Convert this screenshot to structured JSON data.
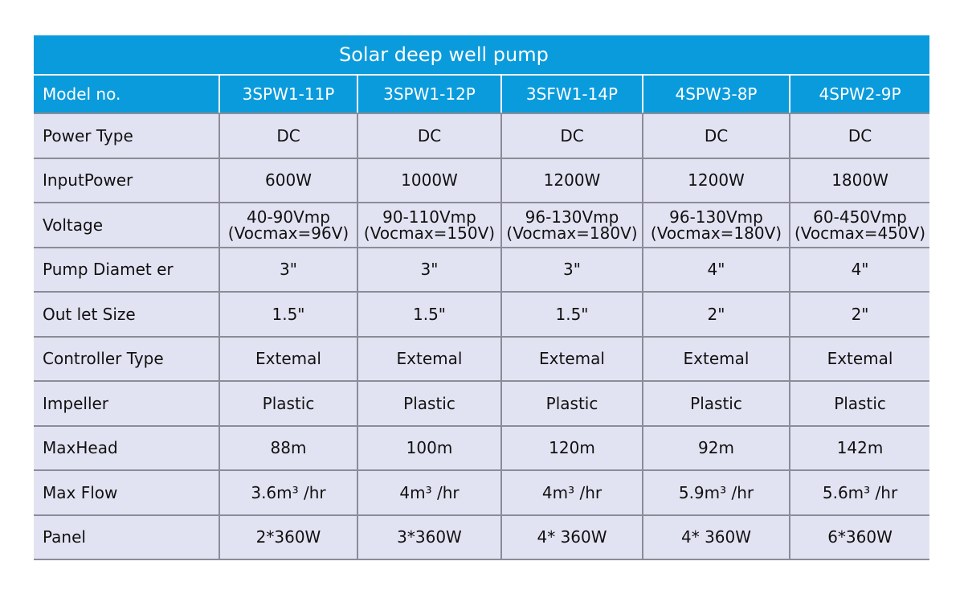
{
  "title": "Solar deep well pump",
  "header": {
    "label": "Model no.",
    "models": [
      "3SPW1-11P",
      "3SPW1-12P",
      "3SFW1-14P",
      "4SPW3-8P",
      "4SPW2-9P"
    ]
  },
  "rows": [
    {
      "label": "Power Type",
      "values": [
        "DC",
        "DC",
        "DC",
        "DC",
        "DC"
      ]
    },
    {
      "label": "InputPower",
      "values": [
        "600W",
        "1000W",
        "1200W",
        "1200W",
        "1800W"
      ]
    },
    {
      "label": "Voltage",
      "values": [
        {
          "line1": "40-90Vmp",
          "line2": "(Vocmax=96V)"
        },
        {
          "line1": "90-110Vmp",
          "line2": "(Vocmax=150V)"
        },
        {
          "line1": "96-130Vmp",
          "line2": "(Vocmax=180V)"
        },
        {
          "line1": "96-130Vmp",
          "line2": "(Vocmax=180V)"
        },
        {
          "line1": "60-450Vmp",
          "line2": "(Vocmax=450V)"
        }
      ]
    },
    {
      "label": "Pump Diamet er",
      "values": [
        "3\"",
        "3\"",
        "3\"",
        "4\"",
        "4\""
      ]
    },
    {
      "label": "Out let Size",
      "values": [
        "1.5\"",
        "1.5\"",
        "1.5\"",
        "2\"",
        "2\""
      ]
    },
    {
      "label": "Controller Type",
      "values": [
        "Extemal",
        "Extemal",
        "Extemal",
        "Extemal",
        "Extemal"
      ]
    },
    {
      "label": "Impeller",
      "values": [
        "Plastic",
        "Plastic",
        "Plastic",
        "Plastic",
        "Plastic"
      ]
    },
    {
      "label": "MaxHead",
      "values": [
        "88m",
        "100m",
        "120m",
        "92m",
        "142m"
      ]
    },
    {
      "label": "Max Flow",
      "values": [
        "3.6m³ /hr",
        "4m³ /hr",
        "4m³ /hr",
        "5.9m³ /hr",
        "5.6m³ /hr"
      ]
    },
    {
      "label": "Panel",
      "values": [
        "2*360W",
        "3*360W",
        "4* 360W",
        "4* 360W",
        "6*360W"
      ]
    }
  ],
  "colors": {
    "header_bg": "#0a9bdc",
    "body_bg": "#e2e3f2",
    "grid_line": "#8c8c98"
  }
}
